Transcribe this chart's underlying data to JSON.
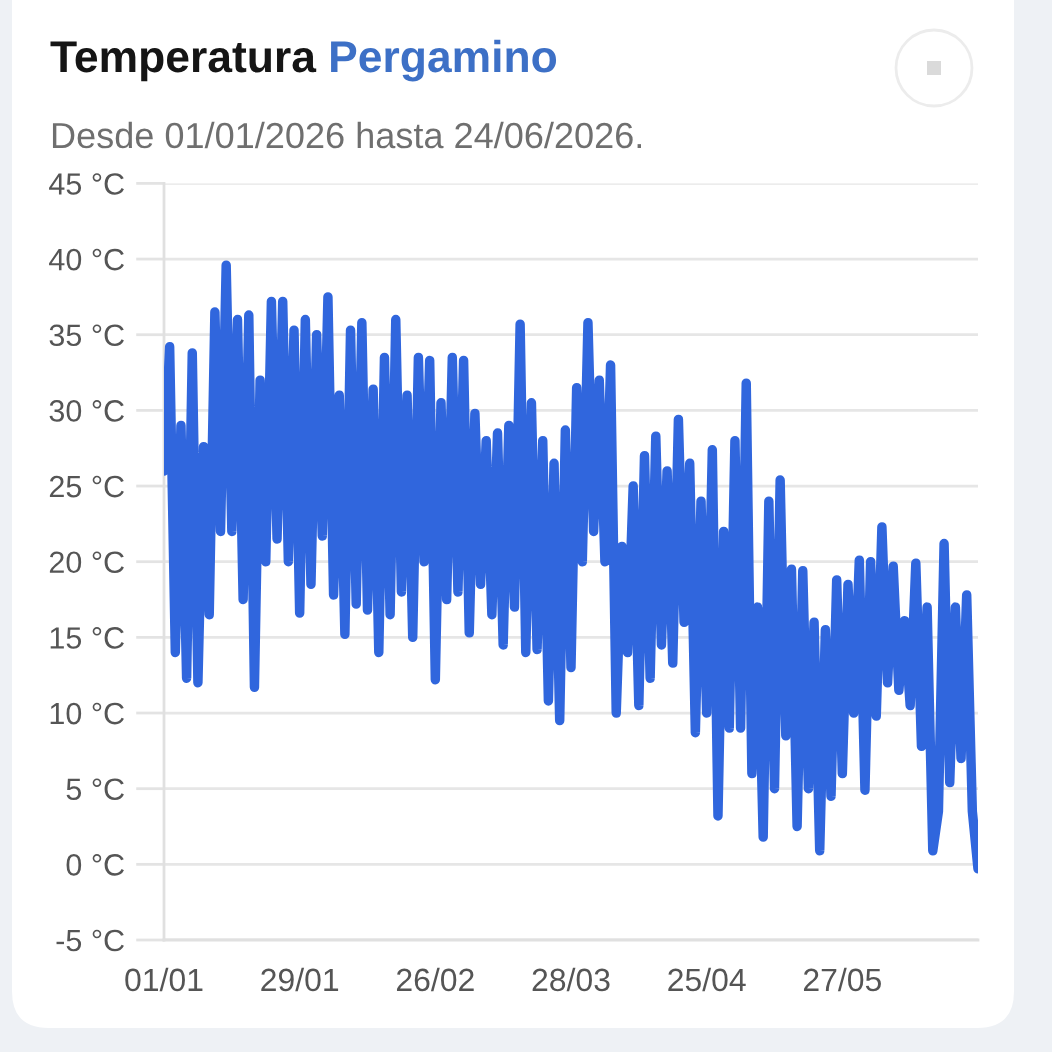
{
  "chart_data": {
    "type": "line",
    "title": "Temperatura Pergamino",
    "subtitle": "Desde 01/01/2026 hasta 24/06/2026.",
    "categories": [
      "01/01",
      null,
      null,
      null,
      null,
      null,
      null,
      null,
      null,
      null,
      null,
      null,
      null,
      null,
      null,
      null,
      null,
      null,
      null,
      null,
      null,
      null,
      null,
      null,
      "29/01",
      null,
      null,
      null,
      null,
      null,
      null,
      null,
      null,
      null,
      null,
      null,
      null,
      null,
      null,
      null,
      null,
      null,
      null,
      null,
      null,
      null,
      null,
      null,
      "26/02",
      null,
      null,
      null,
      null,
      null,
      null,
      null,
      null,
      null,
      null,
      null,
      null,
      null,
      null,
      null,
      null,
      null,
      null,
      null,
      null,
      null,
      null,
      null,
      "28/03",
      null,
      null,
      null,
      null,
      null,
      null,
      null,
      null,
      null,
      null,
      null,
      null,
      null,
      null,
      null,
      null,
      null,
      null,
      null,
      null,
      null,
      null,
      null,
      "25/04",
      null,
      null,
      null,
      null,
      null,
      null,
      null,
      null,
      null,
      null,
      null,
      null,
      null,
      null,
      null,
      null,
      null,
      null,
      null,
      null,
      null,
      null,
      null,
      "27/05",
      null,
      null,
      null,
      null,
      null,
      null,
      null,
      null,
      null,
      null,
      null,
      null,
      null,
      null,
      null,
      null,
      null,
      null,
      null,
      null,
      null,
      null,
      null,
      null
    ],
    "series": [
      {
        "color": "#3066dd",
        "values": [
          26,
          34.2,
          14,
          29,
          12.3,
          33.8,
          12,
          27.6,
          16.5,
          36.5,
          22,
          39.6,
          22,
          36,
          17.5,
          36.3,
          11.7,
          32,
          20,
          37.2,
          21.5,
          37.2,
          20,
          35.3,
          16.6,
          36,
          18.5,
          35,
          21.7,
          37.5,
          17.8,
          31,
          15.2,
          35.3,
          17.2,
          35.8,
          16.8,
          31.4,
          14,
          33.5,
          16.5,
          36,
          18,
          31,
          15,
          33.5,
          20,
          33.3,
          12.2,
          30.5,
          17.5,
          33.5,
          18,
          33.3,
          15.3,
          29.8,
          18.5,
          28,
          16.5,
          28.5,
          14.5,
          29,
          17,
          35.7,
          14,
          30.5,
          14.2,
          28,
          10.8,
          26.5,
          9.5,
          28.7,
          13,
          31.5,
          20,
          35.8,
          22,
          32,
          20,
          33,
          10,
          21,
          14,
          25,
          10.5,
          27,
          12.3,
          28.3,
          14.5,
          26,
          13.3,
          29.4,
          16,
          26.5,
          8.7,
          24,
          10,
          27.4,
          3.2,
          22,
          9,
          28,
          9,
          31.8,
          6,
          17,
          1.8,
          24,
          5,
          25.4,
          8.5,
          19.5,
          2.5,
          19.4,
          5,
          16,
          0.9,
          15.5,
          4.5,
          18.8,
          6,
          18.5,
          10,
          20.1,
          4.9,
          20,
          9.8,
          22.3,
          12,
          19.7,
          11.5,
          16.1,
          10.5,
          19.9,
          7.8,
          17,
          0.9,
          3.5,
          21.2,
          5.4,
          17,
          7,
          17.8,
          3.5,
          -0.3
        ]
      }
    ],
    "ylim": [
      -5,
      45
    ],
    "yticks": [
      {
        "value": -5,
        "label": "-5 °C"
      },
      {
        "value": 0,
        "label": "0 °C"
      },
      {
        "value": 5,
        "label": "5 °C"
      },
      {
        "value": 10,
        "label": "10 °C"
      },
      {
        "value": 15,
        "label": "15 °C"
      },
      {
        "value": 20,
        "label": "20 °C"
      },
      {
        "value": 25,
        "label": "25 °C"
      },
      {
        "value": 30,
        "label": "30 °C"
      },
      {
        "value": 35,
        "label": "35 °C"
      },
      {
        "value": 40,
        "label": "40 °C"
      },
      {
        "value": 45,
        "label": "45 °C"
      }
    ],
    "grid": "y",
    "line_style": "solid"
  }
}
